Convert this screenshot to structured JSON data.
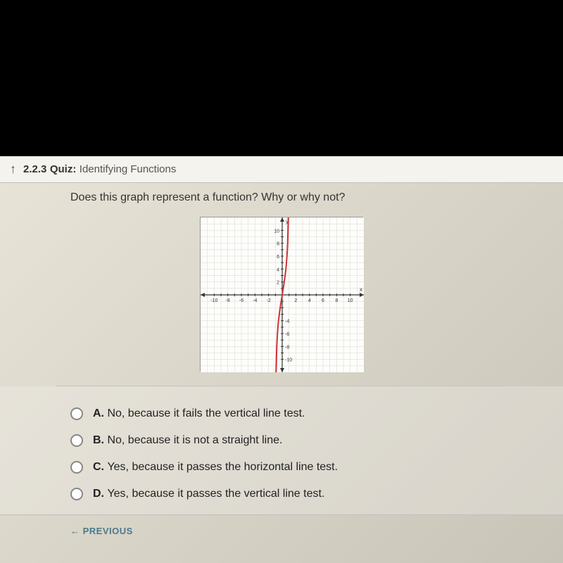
{
  "header": {
    "back_icon": "↑",
    "number": "2.2.3",
    "label": "Quiz:",
    "title": "Identifying Functions"
  },
  "question": {
    "text": "Does this graph represent a function? Why or why not?"
  },
  "graph": {
    "type": "line",
    "xlim": [
      -12,
      12
    ],
    "ylim": [
      -12,
      12
    ],
    "xtick_labels": [
      "-10",
      "-8",
      "-6",
      "-4",
      "-2",
      "2",
      "4",
      "6",
      "8",
      "10"
    ],
    "xtick_values": [
      -10,
      -8,
      -6,
      -4,
      -2,
      2,
      4,
      6,
      8,
      10
    ],
    "ytick_labels": [
      "10",
      "8",
      "6",
      "4",
      "2",
      "-4",
      "-6",
      "-8",
      "-10"
    ],
    "ytick_values": [
      10,
      8,
      6,
      4,
      2,
      -4,
      -6,
      -8,
      -10
    ],
    "x_axis_label": "x",
    "y_axis_label": "y",
    "grid_color": "#d8d6cc",
    "axis_color": "#333333",
    "curve_color": "#cc3333",
    "curve_width": 2,
    "background_color": "#fdfdfb",
    "tick_fontsize": 7,
    "curve_points": [
      [
        -0.9,
        -12
      ],
      [
        -0.85,
        -10
      ],
      [
        -0.8,
        -8
      ],
      [
        -0.7,
        -6
      ],
      [
        -0.55,
        -4
      ],
      [
        -0.3,
        -2
      ],
      [
        0,
        0
      ],
      [
        0.3,
        2
      ],
      [
        0.55,
        4
      ],
      [
        0.7,
        6
      ],
      [
        0.8,
        8
      ],
      [
        0.85,
        10
      ],
      [
        0.9,
        12
      ]
    ]
  },
  "answers": [
    {
      "letter": "A.",
      "text": "No, because it fails the vertical line test."
    },
    {
      "letter": "B.",
      "text": "No, because it is not a straight line."
    },
    {
      "letter": "C.",
      "text": "Yes, because it passes the horizontal line test."
    },
    {
      "letter": "D.",
      "text": "Yes, because it passes the vertical line test."
    }
  ],
  "footer": {
    "previous": "← PREVIOUS"
  }
}
